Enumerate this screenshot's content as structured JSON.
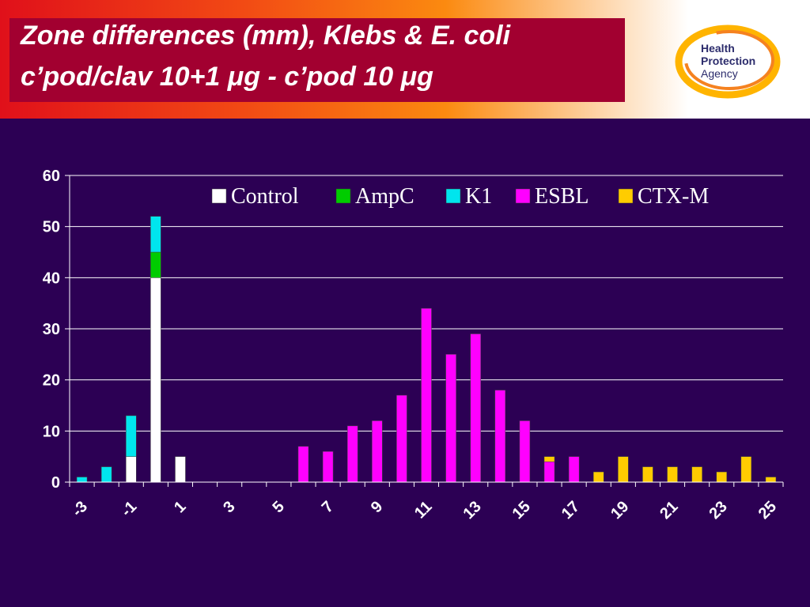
{
  "header": {
    "title_line_1": "Zone differences (mm), Klebs & E. coli",
    "title_line_2": "c’pod/clav 10+1 μg - c’pod 10 μg",
    "logo_lines": [
      "Health",
      "Protection",
      "Agency"
    ]
  },
  "colors": {
    "background": "#2c0054",
    "title_box": "#a20030",
    "Control": "#ffffff",
    "AmpC": "#00cc00",
    "K1": "#00e5ee",
    "ESBL": "#ff00ff",
    "CTX-M": "#ffcc00"
  },
  "chart_data": {
    "type": "bar",
    "stacked": true,
    "categories": [
      -3,
      -2,
      -1,
      0,
      1,
      2,
      3,
      4,
      5,
      6,
      7,
      8,
      9,
      10,
      11,
      12,
      13,
      14,
      15,
      16,
      17,
      18,
      19,
      20,
      21,
      22,
      23,
      24,
      25
    ],
    "x_tick_labels": [
      "-3",
      "-1",
      "1",
      "3",
      "5",
      "7",
      "9",
      "11",
      "13",
      "15",
      "17",
      "19",
      "21",
      "23",
      "25"
    ],
    "series": [
      {
        "name": "Control",
        "values": [
          0,
          0,
          5,
          40,
          5,
          0,
          0,
          0,
          0,
          0,
          0,
          0,
          0,
          0,
          0,
          0,
          0,
          0,
          0,
          0,
          0,
          0,
          0,
          0,
          0,
          0,
          0,
          0,
          0
        ]
      },
      {
        "name": "AmpC",
        "values": [
          0,
          0,
          0,
          5,
          0,
          0,
          0,
          0,
          0,
          0,
          0,
          0,
          0,
          0,
          0,
          0,
          0,
          0,
          0,
          0,
          0,
          0,
          0,
          0,
          0,
          0,
          0,
          0,
          0
        ]
      },
      {
        "name": "K1",
        "values": [
          1,
          3,
          8,
          7,
          0,
          0,
          0,
          0,
          0,
          0,
          0,
          0,
          0,
          0,
          0,
          0,
          0,
          0,
          0,
          0,
          0,
          0,
          0,
          0,
          0,
          0,
          0,
          0,
          0
        ]
      },
      {
        "name": "ESBL",
        "values": [
          0,
          0,
          0,
          0,
          0,
          0,
          0,
          0,
          0,
          7,
          6,
          11,
          12,
          17,
          34,
          25,
          29,
          18,
          12,
          4,
          5,
          0,
          0,
          0,
          0,
          0,
          0,
          0,
          0
        ]
      },
      {
        "name": "CTX-M",
        "values": [
          0,
          0,
          0,
          0,
          0,
          0,
          0,
          0,
          0,
          0,
          0,
          0,
          0,
          0,
          0,
          0,
          0,
          0,
          0,
          1,
          0,
          2,
          5,
          3,
          3,
          3,
          2,
          5,
          1
        ]
      }
    ],
    "ylim": [
      0,
      60
    ],
    "y_ticks": [
      0,
      10,
      20,
      30,
      40,
      50,
      60
    ],
    "grid": true,
    "legend_position": "top-right"
  }
}
